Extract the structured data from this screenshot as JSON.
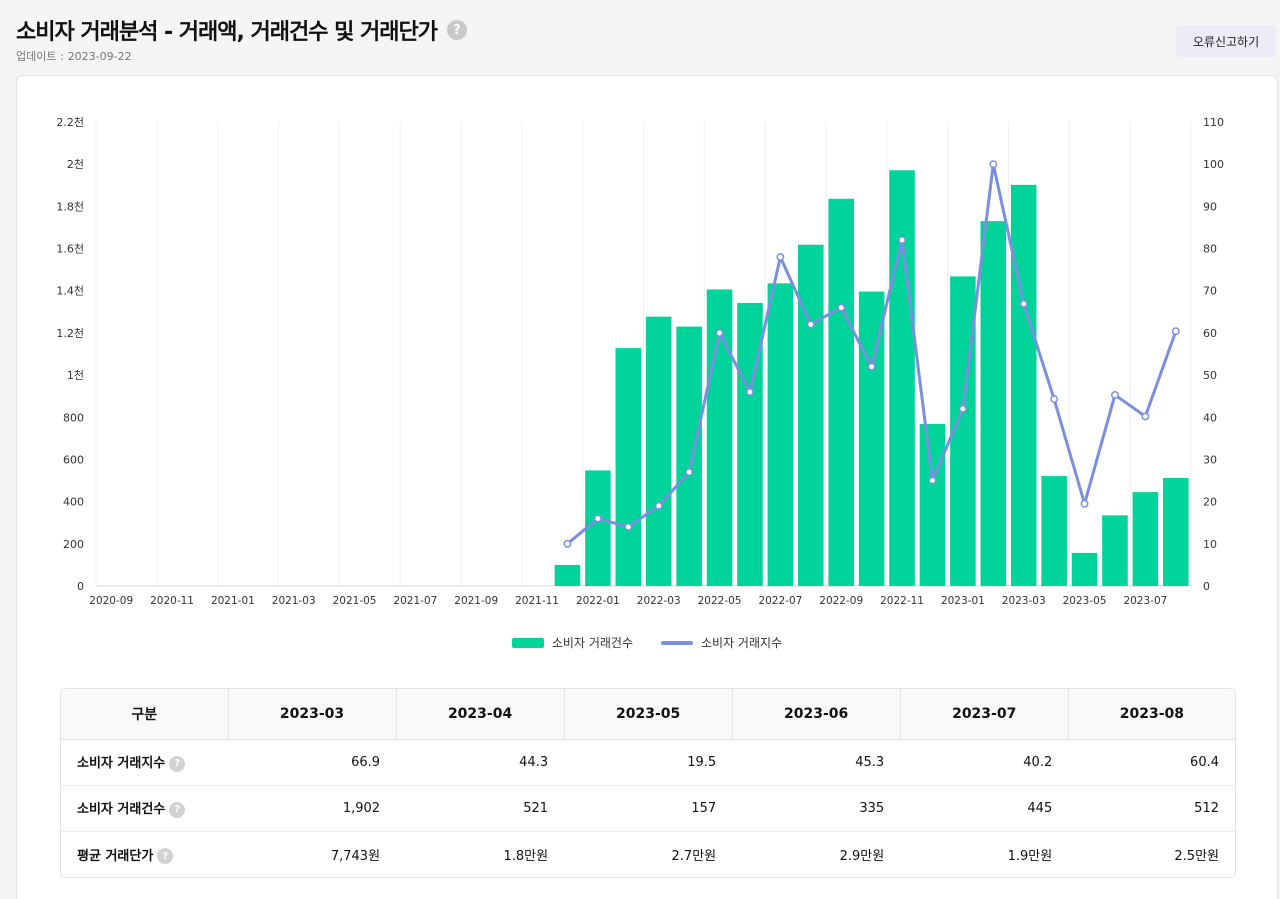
{
  "header": {
    "title": "소비자 거래분석 - 거래액, 거래건수 및 거래단가",
    "help_icon": "?",
    "update_label": "업데이트 :",
    "update_date": "2023-09-22",
    "report_button": "오류신고하기"
  },
  "chart_data": {
    "type": "bar+line",
    "categories": [
      "2020-09",
      "2020-10",
      "2020-11",
      "2020-12",
      "2021-01",
      "2021-02",
      "2021-03",
      "2021-04",
      "2021-05",
      "2021-06",
      "2021-07",
      "2021-08",
      "2021-09",
      "2021-10",
      "2021-11",
      "2021-12",
      "2022-01",
      "2022-02",
      "2022-03",
      "2022-04",
      "2022-05",
      "2022-06",
      "2022-07",
      "2022-08",
      "2022-09",
      "2022-10",
      "2022-11",
      "2022-12",
      "2023-01",
      "2023-02",
      "2023-03",
      "2023-04",
      "2023-05",
      "2023-06",
      "2023-07",
      "2023-08"
    ],
    "x_tick_labels": [
      "2020-09",
      "2020-11",
      "2021-01",
      "2021-03",
      "2021-05",
      "2021-07",
      "2021-09",
      "2021-11",
      "2022-01",
      "2022-03",
      "2022-05",
      "2022-07",
      "2022-09",
      "2022-11",
      "2023-01",
      "2023-03",
      "2023-05",
      "2023-07"
    ],
    "series": [
      {
        "name": "소비자 거래건수",
        "type": "bar",
        "axis": "left",
        "color": "#00d49a",
        "values": [
          null,
          null,
          null,
          null,
          null,
          null,
          null,
          null,
          null,
          null,
          null,
          null,
          null,
          null,
          null,
          100,
          548,
          1128,
          1277,
          1230,
          1406,
          1342,
          1435,
          1618,
          1836,
          1396,
          1971,
          768,
          1468,
          1730,
          1902,
          521,
          157,
          335,
          445,
          512
        ]
      },
      {
        "name": "소비자 거래지수",
        "type": "line",
        "axis": "right",
        "color": "#7b8fe0",
        "values": [
          null,
          null,
          null,
          null,
          null,
          null,
          null,
          null,
          null,
          null,
          null,
          null,
          null,
          null,
          null,
          10,
          16,
          14,
          19,
          27,
          60,
          46,
          78,
          62,
          66,
          52,
          82,
          25,
          42,
          100,
          66.9,
          44.3,
          19.5,
          45.3,
          40.2,
          60.4
        ]
      }
    ],
    "left_axis": {
      "ylim": [
        0,
        2200
      ],
      "tick_labels": [
        "0",
        "200",
        "400",
        "600",
        "800",
        "1천",
        "1.2천",
        "1.4천",
        "1.6천",
        "1.8천",
        "2천",
        "2.2천"
      ]
    },
    "right_axis": {
      "ylim": [
        0,
        110
      ],
      "tick_labels": [
        "0",
        "10",
        "20",
        "30",
        "40",
        "50",
        "60",
        "70",
        "80",
        "90",
        "100",
        "110"
      ]
    },
    "legend": [
      "소비자 거래건수",
      "소비자 거래지수"
    ],
    "legend_position": "bottom-center"
  },
  "table": {
    "columns": [
      "구분",
      "2023-03",
      "2023-04",
      "2023-05",
      "2023-06",
      "2023-07",
      "2023-08"
    ],
    "rows": [
      {
        "label": "소비자 거래지수",
        "help": "?",
        "values": [
          "66.9",
          "44.3",
          "19.5",
          "45.3",
          "40.2",
          "60.4"
        ]
      },
      {
        "label": "소비자 거래건수",
        "help": "?",
        "values": [
          "1,902",
          "521",
          "157",
          "335",
          "445",
          "512"
        ]
      },
      {
        "label": "평균 거래단가",
        "help": "?",
        "values": [
          "7,743원",
          "1.8만원",
          "2.7만원",
          "2.9만원",
          "1.9만원",
          "2.5만원"
        ]
      }
    ]
  }
}
